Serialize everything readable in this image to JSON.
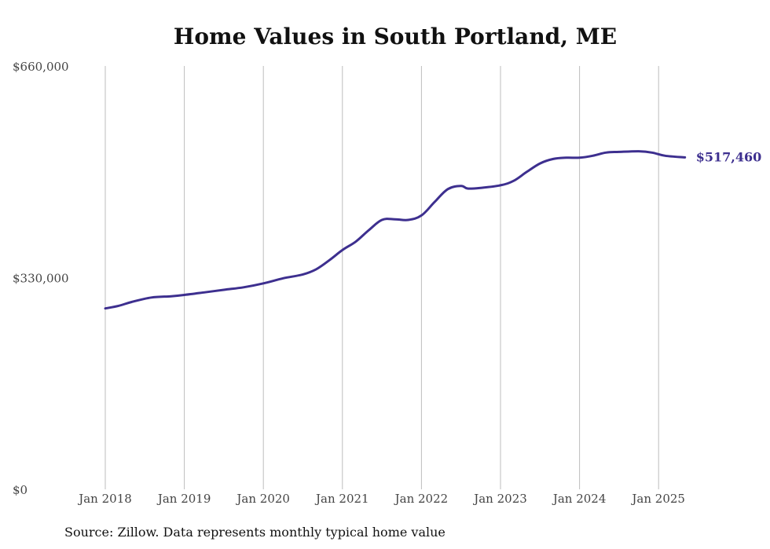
{
  "title": "Home Values in South Portland, ME",
  "source": "Source: Zillow. Data represents monthly typical home value",
  "colors": {
    "line": "#3d2f8f",
    "grid": "#bdbdbd",
    "text": "#444444"
  },
  "chart_data": {
    "type": "line",
    "title": "Home Values in South Portland, ME",
    "xlabel": "",
    "ylabel": "",
    "ylim": [
      0,
      660000
    ],
    "xlim": [
      "2018-01",
      "2025-05"
    ],
    "grid": "vertical",
    "legend": "none",
    "y_ticks": [
      {
        "value": 0,
        "label": "$0"
      },
      {
        "value": 330000,
        "label": "$330,000"
      },
      {
        "value": 660000,
        "label": "$660,000"
      }
    ],
    "x_ticks": [
      {
        "date": "2018-01",
        "label": "Jan 2018"
      },
      {
        "date": "2019-01",
        "label": "Jan 2019"
      },
      {
        "date": "2020-01",
        "label": "Jan 2020"
      },
      {
        "date": "2021-01",
        "label": "Jan 2021"
      },
      {
        "date": "2022-01",
        "label": "Jan 2022"
      },
      {
        "date": "2023-01",
        "label": "Jan 2023"
      },
      {
        "date": "2024-01",
        "label": "Jan 2024"
      },
      {
        "date": "2025-01",
        "label": "Jan 2025"
      }
    ],
    "end_label": "$517,460",
    "series": [
      {
        "points": [
          {
            "date": "2018-01",
            "value": 282000
          },
          {
            "date": "2018-03",
            "value": 286000
          },
          {
            "date": "2018-05",
            "value": 292000
          },
          {
            "date": "2018-08",
            "value": 299000
          },
          {
            "date": "2018-11",
            "value": 301000
          },
          {
            "date": "2019-01",
            "value": 303000
          },
          {
            "date": "2019-04",
            "value": 307000
          },
          {
            "date": "2019-07",
            "value": 311000
          },
          {
            "date": "2019-10",
            "value": 315000
          },
          {
            "date": "2020-01",
            "value": 321000
          },
          {
            "date": "2020-04",
            "value": 329000
          },
          {
            "date": "2020-07",
            "value": 335000
          },
          {
            "date": "2020-09",
            "value": 343000
          },
          {
            "date": "2020-11",
            "value": 357000
          },
          {
            "date": "2021-01",
            "value": 373000
          },
          {
            "date": "2021-03",
            "value": 386000
          },
          {
            "date": "2021-05",
            "value": 404000
          },
          {
            "date": "2021-07",
            "value": 420000
          },
          {
            "date": "2021-09",
            "value": 421000
          },
          {
            "date": "2021-11",
            "value": 420000
          },
          {
            "date": "2022-01",
            "value": 427000
          },
          {
            "date": "2022-03",
            "value": 448000
          },
          {
            "date": "2022-05",
            "value": 468000
          },
          {
            "date": "2022-07",
            "value": 473000
          },
          {
            "date": "2022-08",
            "value": 469000
          },
          {
            "date": "2022-10",
            "value": 470000
          },
          {
            "date": "2023-01",
            "value": 474000
          },
          {
            "date": "2023-03",
            "value": 481000
          },
          {
            "date": "2023-05",
            "value": 495000
          },
          {
            "date": "2023-07",
            "value": 508000
          },
          {
            "date": "2023-09",
            "value": 515000
          },
          {
            "date": "2023-11",
            "value": 517000
          },
          {
            "date": "2024-01",
            "value": 517000
          },
          {
            "date": "2024-03",
            "value": 520000
          },
          {
            "date": "2024-05",
            "value": 525000
          },
          {
            "date": "2024-07",
            "value": 526000
          },
          {
            "date": "2024-10",
            "value": 527000
          },
          {
            "date": "2024-12",
            "value": 525000
          },
          {
            "date": "2025-02",
            "value": 520000
          },
          {
            "date": "2025-05",
            "value": 517460
          }
        ]
      }
    ]
  }
}
